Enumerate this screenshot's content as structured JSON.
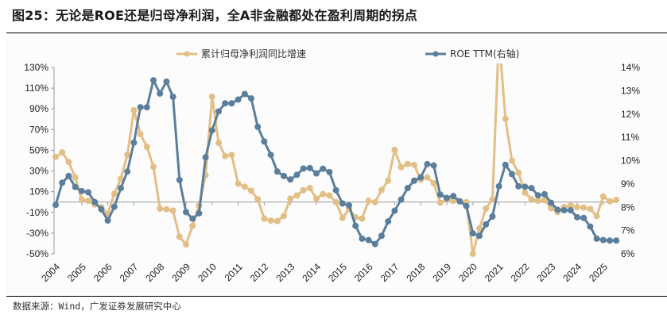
{
  "title": "图25：无论是ROE还是归母净利润，全A非金融都处在盈利周期的拐点",
  "source": "数据来源：Wind，广发证券发展研究中心",
  "chart_data": {
    "type": "line",
    "frequency": "quarterly",
    "x_start": "2004Q1",
    "x_end": "2025Q3",
    "x_tick_labels": [
      "2004",
      "2005",
      "2006",
      "2007",
      "2008",
      "2009",
      "2010",
      "2011",
      "2012",
      "2013",
      "2014",
      "2015",
      "2016",
      "2017",
      "2018",
      "2019",
      "2020",
      "2021",
      "2022",
      "2023",
      "2024",
      "2025"
    ],
    "y_left": {
      "range": [
        -50,
        130
      ],
      "unit": "%",
      "ticks": [
        "130%",
        "110%",
        "90%",
        "70%",
        "50%",
        "30%",
        "10%",
        "-10%",
        "-30%",
        "-50%"
      ]
    },
    "y_right": {
      "range": [
        6,
        14
      ],
      "unit": "%",
      "ticks": [
        "14%",
        "13%",
        "12%",
        "11%",
        "10%",
        "9%",
        "8%",
        "7%",
        "6%"
      ]
    },
    "legend_position": "top",
    "grid": false,
    "series": [
      {
        "name": "累计归母净利润同比增速",
        "axis": "left",
        "color": "#E2BF86",
        "values": [
          43.6,
          48,
          38.7,
          23.8,
          2.4,
          1.2,
          -2.4,
          -5,
          -11.4,
          8,
          22.6,
          45.6,
          88.6,
          65.7,
          53.4,
          34,
          -6.4,
          -7,
          -8.3,
          -33.5,
          -41,
          -23,
          -3.5,
          26,
          101.7,
          57.2,
          44.4,
          45.4,
          17.8,
          14.8,
          11,
          2.7,
          -16,
          -17.9,
          -18.4,
          -13.5,
          3.2,
          6.3,
          11.4,
          13.5,
          3.2,
          7.6,
          6.3,
          -0.1,
          -15.3,
          -6.6,
          -14.8,
          -16,
          1.2,
          -0.1,
          11.7,
          20.7,
          50.3,
          33.6,
          36.7,
          35.9,
          21.7,
          23.8,
          18.1,
          -0.6,
          3.2,
          1.2,
          0.7,
          -0.1,
          -50,
          -25.6,
          -6.3,
          2.4,
          160,
          80.4,
          39.8,
          28.3,
          9,
          2.7,
          1.2,
          2,
          -6,
          -9.6,
          -5,
          -3.2,
          -5,
          -5.3,
          -6.6,
          -13.5,
          5.3,
          0.7,
          2
        ]
      },
      {
        "name": "ROE TTM(右轴)",
        "axis": "right",
        "color": "#5B7E9C",
        "values": [
          8.1,
          9.05,
          9.34,
          8.87,
          8.69,
          8.64,
          8.22,
          7.91,
          7.43,
          8.02,
          8.82,
          9.53,
          10.77,
          12.29,
          12.29,
          13.45,
          12.88,
          13.39,
          12.74,
          9.17,
          7.79,
          7.51,
          7.74,
          10.14,
          11.3,
          12.11,
          12.46,
          12.46,
          12.62,
          12.86,
          12.67,
          11.45,
          10.82,
          10.25,
          9.53,
          9.34,
          9.19,
          9.39,
          9.66,
          9.68,
          9.45,
          9.65,
          9.51,
          8.73,
          8.16,
          8.08,
          7.2,
          6.65,
          6.59,
          6.42,
          6.77,
          7.39,
          7.85,
          8.33,
          8.82,
          9.14,
          9.28,
          9.85,
          9.79,
          8.54,
          8.4,
          8.48,
          8.25,
          8.05,
          6.88,
          6.77,
          7.26,
          7.6,
          8.9,
          9.82,
          9.42,
          8.9,
          8.88,
          8.82,
          8.51,
          8.56,
          8.19,
          7.89,
          7.87,
          7.87,
          7.57,
          7.54,
          7.17,
          6.65,
          6.59,
          6.57,
          6.57
        ]
      }
    ]
  }
}
